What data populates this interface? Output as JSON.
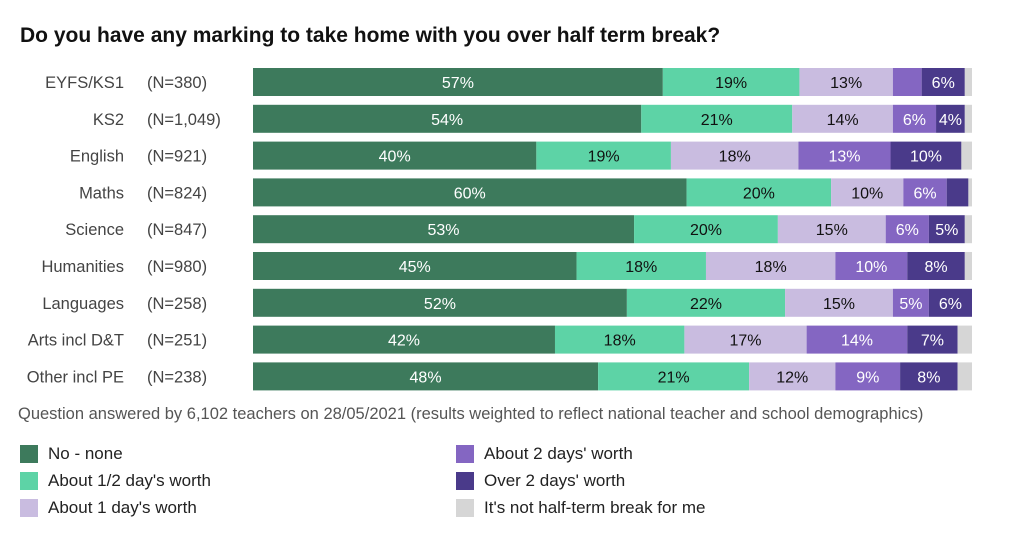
{
  "chart_data": {
    "type": "bar",
    "orientation": "horizontal",
    "stacked": true,
    "percent_stacked": true,
    "title": "Do you have any marking to take home with you over half term break?",
    "note": "Question answered by 6,102 teachers on 28/05/2021 (results weighted to reflect national teacher and school demographics)",
    "categories": [
      "EYFS/KS1",
      "KS2",
      "English",
      "Maths",
      "Science",
      "Humanities",
      "Languages",
      "Arts incl D&T",
      "Other incl PE"
    ],
    "sample_sizes": [
      "(N=380)",
      "(N=1,049)",
      "(N=921)",
      "(N=824)",
      "(N=847)",
      "(N=980)",
      "(N=258)",
      "(N=251)",
      "(N=238)"
    ],
    "series": [
      {
        "name": "No - none",
        "color": "#3d7a5c",
        "label_color": "#ffffff",
        "values": [
          57,
          54,
          40,
          60,
          53,
          45,
          52,
          42,
          48
        ]
      },
      {
        "name": "About 1/2 day's worth",
        "color": "#5dd3a6",
        "label_color": "#111111",
        "values": [
          19,
          21,
          19,
          20,
          20,
          18,
          22,
          18,
          21
        ]
      },
      {
        "name": "About 1 day's worth",
        "color": "#c9bce0",
        "label_color": "#111111",
        "values": [
          13,
          14,
          18,
          10,
          15,
          18,
          15,
          17,
          12
        ]
      },
      {
        "name": "About 2 days' worth",
        "color": "#8466c2",
        "label_color": "#ffffff",
        "values": [
          4,
          6,
          13,
          6,
          6,
          10,
          5,
          14,
          9
        ]
      },
      {
        "name": "Over 2 days' worth",
        "color": "#4a3a8a",
        "label_color": "#ffffff",
        "values": [
          6,
          4,
          10,
          3,
          5,
          8,
          6,
          7,
          8
        ]
      },
      {
        "name": "It's not half-term break for me",
        "color": "#d6d6d6",
        "label_color": "#111111",
        "values": [
          1,
          1,
          1.5,
          0.5,
          1,
          1,
          0,
          2,
          2
        ]
      }
    ],
    "data_labels": [
      [
        "57%",
        "19%",
        "13%",
        "",
        "6%",
        ""
      ],
      [
        "54%",
        "21%",
        "14%",
        "6%",
        "4%",
        ""
      ],
      [
        "40%",
        "19%",
        "18%",
        "13%",
        "10%",
        ""
      ],
      [
        "60%",
        "20%",
        "10%",
        "6%",
        "",
        ""
      ],
      [
        "53%",
        "20%",
        "15%",
        "6%",
        "5%",
        ""
      ],
      [
        "45%",
        "18%",
        "18%",
        "10%",
        "8%",
        ""
      ],
      [
        "52%",
        "22%",
        "15%",
        "5%",
        "6%",
        ""
      ],
      [
        "42%",
        "18%",
        "17%",
        "14%",
        "7%",
        ""
      ],
      [
        "48%",
        "21%",
        "12%",
        "9%",
        "8%",
        ""
      ]
    ],
    "xlim": [
      0,
      100
    ],
    "grid": false,
    "legend_position": "bottom"
  }
}
